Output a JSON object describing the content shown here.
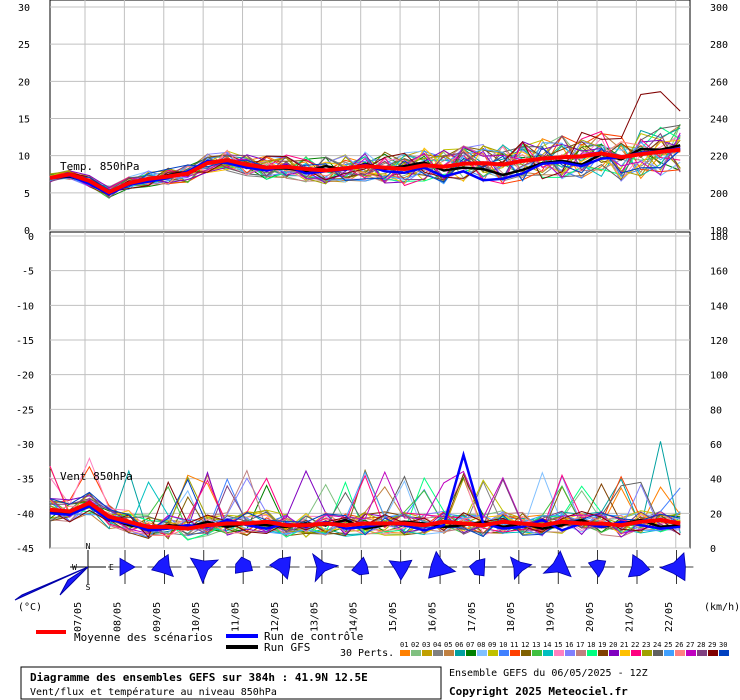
{
  "chart_data": [
    {
      "type": "line",
      "panel": "top",
      "annotation": "Temp. 850hPa",
      "left_axis": {
        "ticks": [
          "30",
          "25",
          "20",
          "15",
          "10",
          "5",
          "0"
        ],
        "range": [
          0,
          30
        ]
      },
      "right_axis": {
        "ticks": [
          "300",
          "280",
          "260",
          "240",
          "220",
          "200",
          "180"
        ],
        "range": [
          180,
          300
        ]
      },
      "x_dates": [
        "07/05",
        "08/05",
        "09/05",
        "10/05",
        "11/05",
        "12/05",
        "13/05",
        "14/05",
        "15/05",
        "16/05",
        "17/05",
        "18/05",
        "19/05",
        "20/05",
        "21/05",
        "22/05"
      ],
      "grid": true,
      "series": [
        {
          "name": "Moyenne des scénarios",
          "color": "#ff0000",
          "x": [
            0,
            0.5,
            1,
            1.5,
            2,
            2.5,
            3,
            3.5,
            4,
            4.5,
            5,
            5.5,
            6,
            6.5,
            7,
            7.5,
            8,
            8.5,
            9,
            9.5,
            10,
            10.5,
            11,
            11.5,
            12,
            12.5,
            13,
            13.5,
            14,
            14.5,
            15,
            15.5,
            16
          ],
          "y": [
            7,
            7.5,
            6.6,
            5.1,
            6.3,
            6.9,
            7.2,
            7.6,
            9.0,
            9.4,
            8.8,
            8.4,
            8.5,
            8.2,
            8.0,
            8.3,
            8.6,
            8.4,
            8.2,
            8.7,
            8.5,
            8.9,
            9.0,
            8.8,
            9.3,
            9.6,
            9.8,
            9.9,
            10.3,
            9.8,
            10.2,
            10.5,
            10.8
          ]
        },
        {
          "name": "Run de contrôle",
          "color": "#0000ff",
          "x": [
            0,
            0.5,
            1,
            1.5,
            2,
            2.5,
            3,
            3.5,
            4,
            4.5,
            5,
            5.5,
            6,
            6.5,
            7,
            7.5,
            8,
            8.5,
            9,
            9.5,
            10,
            10.5,
            11,
            11.5,
            12,
            12.5,
            13,
            13.5,
            14,
            14.5,
            15,
            15.5,
            16
          ],
          "y": [
            7,
            7.3,
            6.2,
            4.8,
            6.1,
            6.5,
            7.0,
            7.9,
            9.3,
            9.0,
            8.4,
            8.0,
            8.7,
            7.6,
            7.9,
            8.1,
            8.8,
            7.9,
            7.7,
            8.4,
            7.2,
            7.9,
            6.7,
            6.9,
            7.6,
            8.9,
            9.1,
            8.6,
            9.6,
            9.8,
            10.4,
            10.6,
            11.0
          ]
        },
        {
          "name": "Run GFS",
          "color": "#000000",
          "x": [
            0,
            0.5,
            1,
            1.5,
            2,
            2.5,
            3,
            3.5,
            4,
            4.5,
            5,
            5.5,
            6,
            6.5,
            7,
            7.5,
            8,
            8.5,
            9,
            9.5,
            10,
            10.5,
            11,
            11.5,
            12,
            12.5,
            13,
            13.5,
            14,
            14.5,
            15,
            15.5,
            16
          ],
          "y": [
            7,
            7.2,
            6.4,
            4.9,
            6.5,
            6.6,
            7.4,
            7.8,
            9.1,
            9.2,
            8.9,
            8.2,
            8.3,
            7.9,
            8.6,
            8.1,
            8.9,
            8.2,
            8.6,
            9.1,
            8.0,
            8.4,
            8.2,
            7.4,
            8.1,
            9.0,
            9.3,
            8.8,
            10.2,
            9.5,
            10.9,
            10.8,
            11.4
          ]
        }
      ]
    },
    {
      "type": "line",
      "panel": "bottom",
      "annotation": "Vent 850hPa",
      "left_axis": {
        "ticks": [
          "0",
          "-5",
          "-10",
          "-15",
          "-20",
          "-25",
          "-30",
          "-35",
          "-40",
          "-45"
        ],
        "range": [
          -45,
          0
        ]
      },
      "right_axis": {
        "ticks": [
          "180",
          "160",
          "140",
          "120",
          "100",
          "80",
          "60",
          "40",
          "20",
          "0"
        ],
        "range": [
          0,
          180
        ]
      },
      "grid": true,
      "series": [
        {
          "name": "Moyenne des scénarios",
          "color": "#ff0000",
          "x": [
            0,
            0.5,
            1,
            1.5,
            2,
            2.5,
            3,
            3.5,
            4,
            4.5,
            5,
            5.5,
            6,
            6.5,
            7,
            7.5,
            8,
            8.5,
            9,
            9.5,
            10,
            10.5,
            11,
            11.5,
            12,
            12.5,
            13,
            13.5,
            14,
            14.5,
            15,
            15.5,
            16
          ],
          "y": [
            20,
            19,
            24,
            16,
            13,
            10,
            10,
            9,
            11,
            12,
            12,
            13,
            11,
            11,
            12,
            11,
            12,
            12,
            12,
            11,
            13,
            12,
            11,
            13,
            12,
            11,
            13,
            12,
            12,
            11,
            13,
            14,
            12
          ]
        },
        {
          "name": "Run de contrôle",
          "color": "#0000ff",
          "x": [
            0,
            0.5,
            1,
            1.5,
            2,
            2.5,
            3,
            3.5,
            4,
            4.5,
            5,
            5.5,
            6,
            6.5,
            7,
            7.5,
            8,
            8.5,
            9,
            9.5,
            10,
            10.5,
            11,
            11.5,
            12,
            12.5,
            13,
            13.5,
            14,
            14.5,
            15,
            15.5,
            16
          ],
          "y": [
            18,
            17,
            22,
            14,
            12,
            8,
            9,
            11,
            10,
            14,
            11,
            9,
            12,
            10,
            13,
            9,
            10,
            12,
            11,
            8,
            11,
            52,
            12,
            9,
            10,
            14,
            8,
            12,
            10,
            13,
            11,
            9,
            10
          ]
        },
        {
          "name": "Run GFS",
          "color": "#000000",
          "x": [
            0,
            0.5,
            1,
            1.5,
            2,
            2.5,
            3,
            3.5,
            4,
            4.5,
            5,
            5.5,
            6,
            6.5,
            7,
            7.5,
            8,
            8.5,
            9,
            9.5,
            10,
            10.5,
            11,
            11.5,
            12,
            12.5,
            13,
            13.5,
            14,
            14.5,
            15,
            15.5,
            16
          ],
          "y": [
            19,
            18,
            23,
            15,
            11,
            9,
            11,
            10,
            13,
            10,
            12,
            11,
            10,
            12,
            11,
            14,
            9,
            11,
            13,
            12,
            10,
            11,
            13,
            10,
            12,
            9,
            11,
            14,
            10,
            12,
            14,
            10,
            11
          ]
        }
      ]
    }
  ],
  "labels": {
    "unit_left": "(°C)",
    "unit_right": "(km/h)",
    "compass_n": "N",
    "compass_s": "S",
    "compass_e": "E",
    "compass_w": "W"
  },
  "legend": {
    "mean": "Moyenne des scénarios",
    "control": "Run de contrôle",
    "gfs": "Run GFS",
    "perts": "30 Perts.",
    "pert_numbers": [
      "01",
      "02",
      "03",
      "04",
      "05",
      "06",
      "07",
      "08",
      "09",
      "10",
      "11",
      "12",
      "13",
      "14",
      "15",
      "16",
      "17",
      "18",
      "19",
      "20",
      "21",
      "22",
      "23",
      "24",
      "25",
      "26",
      "27",
      "28",
      "29",
      "30"
    ],
    "pert_colors": [
      "#ff8000",
      "#80c080",
      "#c0a000",
      "#808080",
      "#c08040",
      "#00a0a0",
      "#008000",
      "#80c0ff",
      "#c0c000",
      "#4080ff",
      "#ff4000",
      "#806000",
      "#40c040",
      "#00c0c0",
      "#ff80c0",
      "#8080ff",
      "#c08080",
      "#00ff80",
      "#804000",
      "#8000c0",
      "#ffc000",
      "#ff0080",
      "#a0a000",
      "#606060",
      "#40a0ff",
      "#ff8080",
      "#c000c0",
      "#804080",
      "#800000",
      "#0040c0"
    ]
  },
  "footer": {
    "title": "Diagramme des ensembles GEFS sur 384h : 41.9N 12.5E",
    "subtitle": "Vent/flux et température au niveau 850hPa",
    "run_info": "Ensemble GEFS du 06/05/2025 - 12Z",
    "copyright": "Copyright 2025 Meteociel.fr"
  }
}
